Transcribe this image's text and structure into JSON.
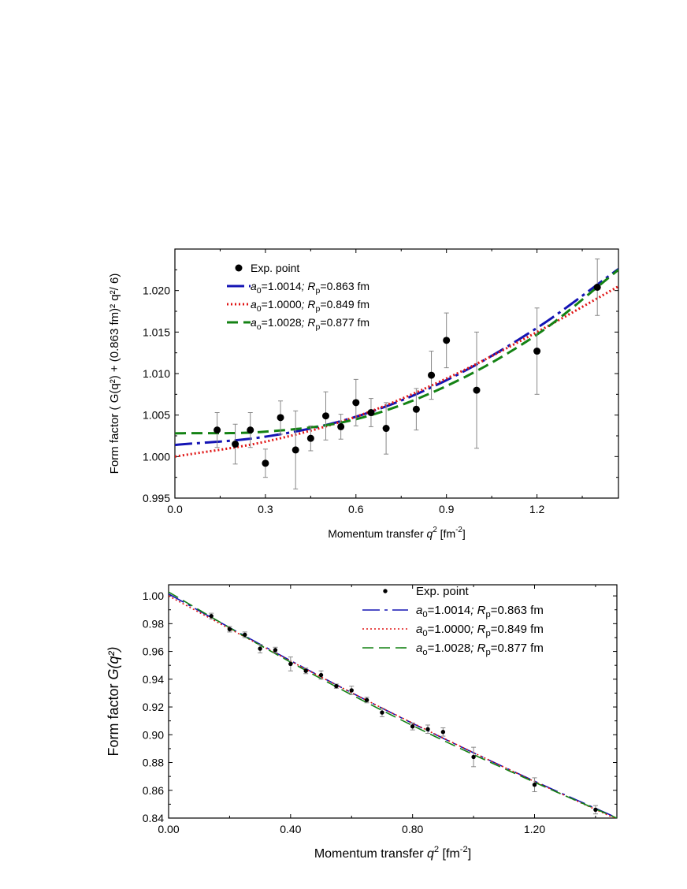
{
  "colors": {
    "model_a": "#1414b4",
    "model_b": "#e01414",
    "model_c": "#148214",
    "points": "#000000",
    "errorbars": "#888888"
  },
  "chart_data": [
    {
      "id": "top",
      "type": "scatter",
      "xlabel": "Momentum transfer",
      "xlabel_var": "q",
      "xlabel_unit": "[fm",
      "xlabel_unit_exp": "-2",
      "xlabel_unit_close": "]",
      "ylabel_prefix": "Form factor",
      "ylabel_formula": "( G(q²) + (0.863 fm)² q²/ 6)",
      "xlim": [
        0.0,
        1.47
      ],
      "ylim": [
        0.995,
        1.025
      ],
      "xticks": [
        0.0,
        0.3,
        0.6,
        0.9,
        1.2
      ],
      "xtick_labels": [
        "0.0",
        "0.3",
        "0.6",
        "0.9",
        "1.2"
      ],
      "yticks": [
        0.995,
        1.0,
        1.005,
        1.01,
        1.015,
        1.02
      ],
      "ytick_labels": [
        "0.995",
        "1.000",
        "1.005",
        "1.010",
        "1.015",
        "1.020"
      ],
      "legend_position": "top-left",
      "points": {
        "name": "Exp. point",
        "x": [
          0.14,
          0.2,
          0.25,
          0.3,
          0.35,
          0.4,
          0.45,
          0.5,
          0.55,
          0.6,
          0.65,
          0.7,
          0.8,
          0.85,
          0.9,
          1.0,
          1.2,
          1.4
        ],
        "y": [
          1.0032,
          1.0015,
          1.0032,
          0.9992,
          1.0047,
          1.0008,
          1.0022,
          1.0049,
          1.0036,
          1.0065,
          1.0053,
          1.0034,
          1.0057,
          1.0098,
          1.014,
          1.008,
          1.0127,
          1.0204
        ],
        "err": [
          0.0021,
          0.0024,
          0.0021,
          0.0017,
          0.002,
          0.0047,
          0.0015,
          0.0029,
          0.0015,
          0.0028,
          0.0017,
          0.0031,
          0.0025,
          0.0029,
          0.0033,
          0.007,
          0.0052,
          0.0034
        ]
      },
      "series": [
        {
          "label_a": "a",
          "label_a_sub": "0",
          "label_a_val": "=1.0014",
          "label_sep": ";",
          "label_r": "R",
          "label_r_sub": "p",
          "label_r_val": "=0.863 fm",
          "a0": 1.0014,
          "rp": 0.863,
          "x": [
            0,
            0.3,
            0.6,
            0.9,
            1.2,
            1.47
          ],
          "y": [
            1.0014,
            1.0024,
            1.0048,
            1.0092,
            1.0155,
            1.0226
          ]
        },
        {
          "label_a": "a",
          "label_a_sub": "0",
          "label_a_val": "=1.0000",
          "label_sep": ";",
          "label_r": "R",
          "label_r_sub": "p",
          "label_r_val": "=0.849 fm",
          "a0": 1.0,
          "rp": 0.849,
          "x": [
            0,
            0.3,
            0.6,
            0.9,
            1.2,
            1.47
          ],
          "y": [
            1.0,
            1.0018,
            1.0048,
            1.0094,
            1.015,
            1.0205
          ]
        },
        {
          "label_a": "a",
          "label_a_sub": "o",
          "label_a_val": "=1.0028",
          "label_sep": ";",
          "label_r": "R",
          "label_r_sub": "p",
          "label_r_val": "=0.877 fm",
          "a0": 1.0028,
          "rp": 0.877,
          "x": [
            0,
            0.3,
            0.6,
            0.9,
            1.2,
            1.47
          ],
          "y": [
            1.0028,
            1.003,
            1.0045,
            1.0085,
            1.0147,
            1.0225
          ]
        }
      ]
    },
    {
      "id": "bottom",
      "type": "scatter",
      "xlabel": "Momentum transfer",
      "xlabel_var": "q",
      "xlabel_unit": "[fm",
      "xlabel_unit_exp": "-2",
      "xlabel_unit_close": "]",
      "ylabel_prefix": "Form factor",
      "ylabel_formula": "G(q²)",
      "xlim": [
        0.0,
        1.47
      ],
      "ylim": [
        0.84,
        1.008
      ],
      "xticks": [
        0.0,
        0.4,
        0.8,
        1.2
      ],
      "xtick_labels": [
        "0.00",
        "0.40",
        "0.80",
        "1.20"
      ],
      "yticks": [
        0.84,
        0.86,
        0.88,
        0.9,
        0.92,
        0.94,
        0.96,
        0.98,
        1.0
      ],
      "ytick_labels": [
        "0.84",
        "0.86",
        "0.88",
        "0.90",
        "0.92",
        "0.94",
        "0.96",
        "0.98",
        "1.00"
      ],
      "legend_position": "top-right",
      "points": {
        "name": "Exp. point",
        "x": [
          0.14,
          0.2,
          0.25,
          0.3,
          0.35,
          0.4,
          0.45,
          0.5,
          0.55,
          0.6,
          0.65,
          0.7,
          0.8,
          0.85,
          0.9,
          1.0,
          1.2,
          1.4
        ],
        "y": [
          0.9855,
          0.976,
          0.972,
          0.962,
          0.961,
          0.951,
          0.946,
          0.943,
          0.935,
          0.932,
          0.925,
          0.916,
          0.906,
          0.904,
          0.902,
          0.884,
          0.864,
          0.846
        ],
        "err": [
          0.002,
          0.002,
          0.002,
          0.003,
          0.002,
          0.005,
          0.002,
          0.003,
          0.0015,
          0.003,
          0.002,
          0.003,
          0.0025,
          0.003,
          0.003,
          0.007,
          0.005,
          0.003
        ]
      },
      "series": [
        {
          "label_a": "a",
          "label_a_sub": "0",
          "label_a_val": "=1.0014",
          "label_sep": ";",
          "label_r": "R",
          "label_r_sub": "p",
          "label_r_val": "=0.863 fm",
          "a0": 1.0014,
          "rp": 0.863,
          "x": [
            0,
            0.3,
            0.6,
            0.9,
            1.2,
            1.47
          ],
          "y": [
            1.0014,
            0.9652,
            0.9303,
            0.8975,
            0.8666,
            0.8402
          ]
        },
        {
          "label_a": "a",
          "label_a_sub": "0",
          "label_a_val": "=1.0000",
          "label_sep": ";",
          "label_r": "R",
          "label_r_sub": "p",
          "label_r_val": "=0.849 fm",
          "a0": 1.0,
          "rp": 0.849,
          "x": [
            0,
            0.3,
            0.6,
            0.9,
            1.2,
            1.47
          ],
          "y": [
            1.0,
            0.9646,
            0.9303,
            0.8977,
            0.8663,
            0.8392
          ]
        },
        {
          "label_a": "a",
          "label_a_sub": "o",
          "label_a_val": "=1.0028",
          "label_sep": ";",
          "label_r": "R",
          "label_r_sub": "p",
          "label_r_val": "=0.877 fm",
          "a0": 1.0028,
          "rp": 0.877,
          "x": [
            0,
            0.3,
            0.6,
            0.9,
            1.2,
            1.47
          ],
          "y": [
            1.0028,
            0.9645,
            0.9288,
            0.896,
            0.8658,
            0.8399
          ]
        }
      ]
    }
  ]
}
